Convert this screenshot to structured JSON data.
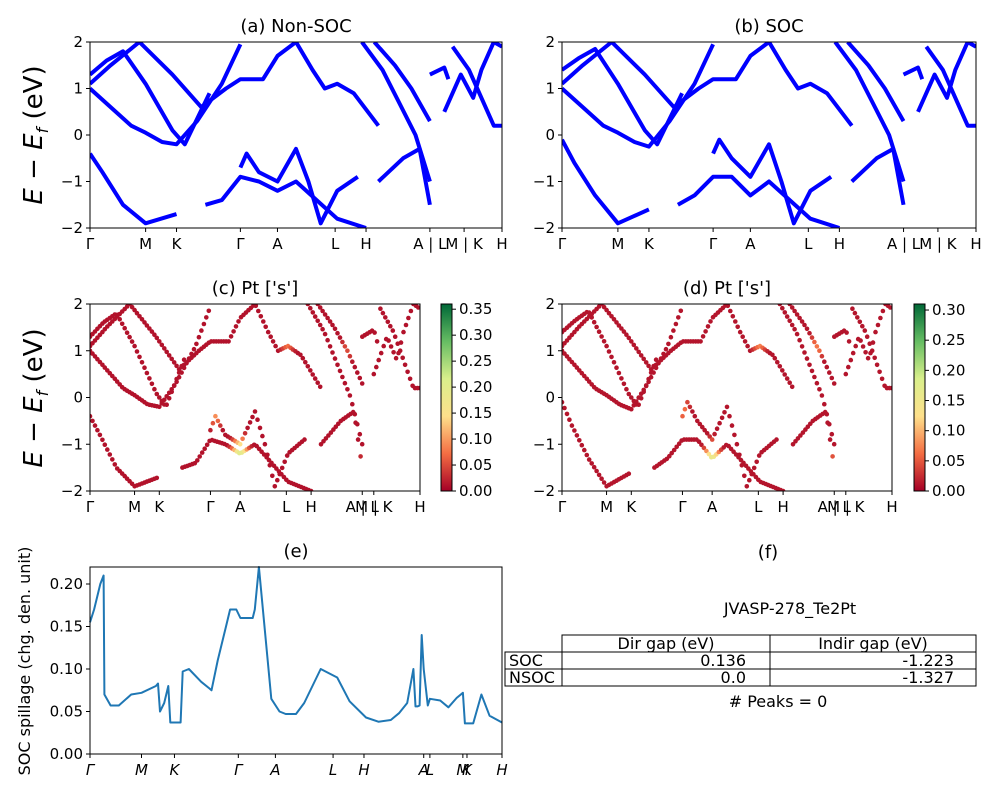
{
  "chart_data": [
    {
      "id": "a",
      "type": "line",
      "title": "(a) Non-SOC",
      "ylabel": "E − E_f (eV)",
      "ylim": [
        -2,
        2
      ],
      "yticks": [
        "2",
        "1",
        "0",
        "−1",
        "−2"
      ],
      "kpath_labels": [
        "Γ",
        "M",
        "K",
        "Γ",
        "A",
        "L",
        "H",
        "A | L",
        "M | K",
        "H"
      ],
      "kpath_positions": [
        0,
        0.135,
        0.21,
        0.365,
        0.455,
        0.595,
        0.67,
        0.825,
        0.908,
        1.0
      ],
      "line_color": "#0000ff",
      "bands": [
        {
          "x": [
            0,
            0.05,
            0.1,
            0.135,
            0.175,
            0.21,
            0.26,
            0.32,
            0.365
          ],
          "y": [
            1.0,
            0.6,
            0.2,
            0.05,
            -0.15,
            -0.2,
            0.3,
            1.1,
            1.95
          ]
        },
        {
          "x": [
            0,
            0.04,
            0.08,
            0.135,
            0.2,
            0.23,
            0.29
          ],
          "y": [
            1.3,
            1.6,
            1.8,
            1.1,
            0.1,
            -0.2,
            0.9
          ]
        },
        {
          "x": [
            0,
            0.03,
            0.08,
            0.135,
            0.21
          ],
          "y": [
            -0.4,
            -0.8,
            -1.5,
            -1.9,
            -1.7
          ]
        },
        {
          "x": [
            0,
            0.05,
            0.12,
            0.2,
            0.27,
            0.33,
            0.365,
            0.42,
            0.455,
            0.5,
            0.54,
            0.57,
            0.6,
            0.64,
            0.7
          ],
          "y": [
            1.1,
            1.5,
            2.0,
            1.3,
            0.6,
            1.0,
            1.2,
            1.2,
            1.7,
            2.0,
            1.4,
            1.0,
            1.1,
            0.9,
            0.2
          ]
        },
        {
          "x": [
            0.365,
            0.38,
            0.41,
            0.455,
            0.5,
            0.53,
            0.56,
            0.6,
            0.65
          ],
          "y": [
            -0.7,
            -0.4,
            -0.8,
            -1.0,
            -0.3,
            -1.0,
            -1.9,
            -1.2,
            -0.9
          ]
        },
        {
          "x": [
            0.28,
            0.32,
            0.365,
            0.41,
            0.455,
            0.5,
            0.55,
            0.6,
            0.67
          ],
          "y": [
            -1.5,
            -1.4,
            -0.9,
            -1.0,
            -1.2,
            -1.0,
            -1.4,
            -1.8,
            -2.0
          ]
        },
        {
          "x": [
            0.66,
            0.71,
            0.75,
            0.79,
            0.825
          ],
          "y": [
            2.0,
            1.4,
            0.7,
            0.0,
            -1.0
          ]
        },
        {
          "x": [
            0.69,
            0.74,
            0.78,
            0.825
          ],
          "y": [
            2.0,
            1.5,
            1.0,
            0.3
          ]
        },
        {
          "x": [
            0.7,
            0.76,
            0.8,
            0.825
          ],
          "y": [
            -1.0,
            -0.5,
            -0.3,
            -1.5
          ]
        },
        {
          "x": [
            0.825,
            0.86,
            0.87
          ],
          "y": [
            1.3,
            1.45,
            1.2
          ]
        },
        {
          "x": [
            0.86,
            0.9,
            0.93,
            0.95,
            0.98,
            1.0
          ],
          "y": [
            0.5,
            1.3,
            0.8,
            1.4,
            2.0,
            1.9
          ]
        },
        {
          "x": [
            0.88,
            0.92,
            0.95,
            0.98,
            1.0
          ],
          "y": [
            1.9,
            1.4,
            0.8,
            0.2,
            0.2
          ]
        }
      ]
    },
    {
      "id": "b",
      "type": "line",
      "title": "(b) SOC",
      "ylim": [
        -2,
        2
      ],
      "yticks": [
        "2",
        "1",
        "0",
        "−1",
        "−2"
      ],
      "kpath_labels": [
        "Γ",
        "M",
        "K",
        "Γ",
        "A",
        "L",
        "H",
        "A | L",
        "M | K",
        "H"
      ],
      "kpath_positions": [
        0,
        0.135,
        0.21,
        0.365,
        0.455,
        0.595,
        0.67,
        0.825,
        0.908,
        1.0
      ],
      "line_color": "#0000ff",
      "bands": [
        {
          "x": [
            0,
            0.05,
            0.1,
            0.135,
            0.175,
            0.21,
            0.26,
            0.32,
            0.365
          ],
          "y": [
            1.0,
            0.6,
            0.2,
            0.05,
            -0.15,
            -0.25,
            0.3,
            1.1,
            1.95
          ]
        },
        {
          "x": [
            0,
            0.04,
            0.08,
            0.135,
            0.2,
            0.23,
            0.29
          ],
          "y": [
            1.4,
            1.65,
            1.85,
            1.1,
            0.1,
            -0.2,
            0.9
          ]
        },
        {
          "x": [
            0,
            0.03,
            0.08,
            0.135,
            0.21
          ],
          "y": [
            -0.1,
            -0.6,
            -1.3,
            -1.9,
            -1.6
          ]
        },
        {
          "x": [
            0,
            0.05,
            0.12,
            0.2,
            0.27,
            0.33,
            0.365,
            0.42,
            0.455,
            0.5,
            0.54,
            0.57,
            0.6,
            0.64,
            0.7
          ],
          "y": [
            1.1,
            1.5,
            2.0,
            1.3,
            0.6,
            1.0,
            1.2,
            1.2,
            1.7,
            2.0,
            1.4,
            1.0,
            1.1,
            0.9,
            0.2
          ]
        },
        {
          "x": [
            0.365,
            0.38,
            0.41,
            0.455,
            0.5,
            0.53,
            0.56,
            0.6,
            0.65
          ],
          "y": [
            -0.4,
            -0.1,
            -0.5,
            -0.9,
            -0.2,
            -1.0,
            -1.9,
            -1.2,
            -0.9
          ]
        },
        {
          "x": [
            0.28,
            0.32,
            0.365,
            0.41,
            0.455,
            0.5,
            0.55,
            0.6,
            0.67
          ],
          "y": [
            -1.5,
            -1.3,
            -0.9,
            -0.9,
            -1.3,
            -1.0,
            -1.4,
            -1.8,
            -2.0
          ]
        },
        {
          "x": [
            0.66,
            0.71,
            0.75,
            0.79,
            0.825
          ],
          "y": [
            2.0,
            1.4,
            0.7,
            0.0,
            -1.0
          ]
        },
        {
          "x": [
            0.69,
            0.74,
            0.78,
            0.825
          ],
          "y": [
            2.0,
            1.5,
            1.0,
            0.3
          ]
        },
        {
          "x": [
            0.7,
            0.76,
            0.8,
            0.825
          ],
          "y": [
            -1.0,
            -0.5,
            -0.3,
            -1.5
          ]
        },
        {
          "x": [
            0.825,
            0.86,
            0.87
          ],
          "y": [
            1.3,
            1.45,
            1.2
          ]
        },
        {
          "x": [
            0.86,
            0.9,
            0.93,
            0.95,
            0.98,
            1.0
          ],
          "y": [
            0.5,
            1.3,
            0.8,
            1.4,
            2.0,
            1.9
          ]
        },
        {
          "x": [
            0.88,
            0.92,
            0.95,
            0.98,
            1.0
          ],
          "y": [
            1.9,
            1.4,
            0.8,
            0.2,
            0.2
          ]
        }
      ]
    },
    {
      "id": "c",
      "type": "scatter",
      "title": "(c)  Pt ['s']",
      "ylabel": "E − E_f (eV)",
      "ylim": [
        -2,
        2
      ],
      "yticks": [
        "2",
        "1",
        "0",
        "−1",
        "−2"
      ],
      "kpath_labels": [
        "Γ",
        "M",
        "K",
        "Γ",
        "A",
        "L",
        "H",
        "A | L",
        "M | K",
        "H"
      ],
      "kpath_positions": [
        0,
        0.135,
        0.21,
        0.365,
        0.455,
        0.595,
        0.67,
        0.825,
        0.86,
        1.0
      ],
      "colorbar": {
        "min": 0.0,
        "max": 0.36,
        "ticks": [
          "0.35",
          "0.30",
          "0.25",
          "0.20",
          "0.15",
          "0.10",
          "0.05",
          "0.00"
        ],
        "tick_values": [
          0.35,
          0.3,
          0.25,
          0.2,
          0.15,
          0.1,
          0.05,
          0.0
        ],
        "colormap": "RdYlGn",
        "colors": [
          "#a50026",
          "#f46d43",
          "#fee08b",
          "#d9ef8b",
          "#66bd63",
          "#006837"
        ]
      },
      "highlights": [
        {
          "x": 0.455,
          "y": -1.2,
          "w": 0.2
        },
        {
          "x": 0.44,
          "y": -1.55,
          "w": 0.14
        },
        {
          "x": 0.83,
          "y": -1.7,
          "w": 0.15
        },
        {
          "x": 0.6,
          "y": 1.3,
          "w": 0.1
        },
        {
          "x": 0.38,
          "y": -0.3,
          "w": 0.1
        },
        {
          "x": 0.79,
          "y": 1.2,
          "w": 0.08
        }
      ]
    },
    {
      "id": "d",
      "type": "scatter",
      "title": "(d) Pt ['s']",
      "ylim": [
        -2,
        2
      ],
      "yticks": [
        "2",
        "1",
        "0",
        "−1",
        "−2"
      ],
      "kpath_labels": [
        "Γ",
        "M",
        "K",
        "Γ",
        "A",
        "L",
        "H",
        "A | L",
        "M | K",
        "H"
      ],
      "kpath_positions": [
        0,
        0.135,
        0.21,
        0.365,
        0.455,
        0.595,
        0.67,
        0.825,
        0.86,
        1.0
      ],
      "colorbar": {
        "min": 0.0,
        "max": 0.31,
        "ticks": [
          "0.30",
          "0.25",
          "0.20",
          "0.15",
          "0.10",
          "0.05",
          "0.00"
        ],
        "tick_values": [
          0.3,
          0.25,
          0.2,
          0.15,
          0.1,
          0.05,
          0.0
        ],
        "colormap": "RdYlGn",
        "colors": [
          "#a50026",
          "#f46d43",
          "#fee08b",
          "#d9ef8b",
          "#66bd63",
          "#006837"
        ]
      },
      "highlights": [
        {
          "x": 0.455,
          "y": -1.3,
          "w": 0.16
        },
        {
          "x": 0.83,
          "y": -1.6,
          "w": 0.14
        },
        {
          "x": 0.6,
          "y": 1.3,
          "w": 0.1
        },
        {
          "x": 0.36,
          "y": -0.2,
          "w": 0.08
        },
        {
          "x": 0.78,
          "y": 1.2,
          "w": 0.08
        }
      ]
    },
    {
      "id": "e",
      "type": "line",
      "title": "(e)",
      "ylabel": "SOC spillage (chg. den. unit)",
      "ylim": [
        0,
        0.22
      ],
      "yticks": [
        "0.20",
        "0.15",
        "0.10",
        "0.05",
        "0.00"
      ],
      "ytick_values": [
        0.2,
        0.15,
        0.1,
        0.05,
        0.0
      ],
      "kpath_labels": [
        "Γ",
        "M",
        "K",
        "Γ",
        "A",
        "L",
        "H",
        "A",
        "L",
        "M",
        "K",
        "H"
      ],
      "kpath_positions": [
        0,
        0.125,
        0.205,
        0.36,
        0.45,
        0.59,
        0.665,
        0.81,
        0.825,
        0.905,
        0.915,
        1.0
      ],
      "line_color": "#1f77b4",
      "x": [
        0,
        0.01,
        0.025,
        0.033,
        0.035,
        0.05,
        0.07,
        0.1,
        0.125,
        0.16,
        0.165,
        0.17,
        0.18,
        0.19,
        0.195,
        0.2,
        0.22,
        0.225,
        0.24,
        0.27,
        0.29,
        0.295,
        0.31,
        0.33,
        0.34,
        0.355,
        0.365,
        0.395,
        0.4,
        0.41,
        0.44,
        0.46,
        0.475,
        0.5,
        0.52,
        0.56,
        0.6,
        0.63,
        0.67,
        0.7,
        0.73,
        0.75,
        0.77,
        0.785,
        0.79,
        0.795,
        0.8,
        0.805,
        0.81,
        0.82,
        0.825,
        0.85,
        0.87,
        0.89,
        0.905,
        0.91,
        0.915,
        0.93,
        0.95,
        0.97,
        1.0
      ],
      "y": [
        0.155,
        0.17,
        0.2,
        0.21,
        0.07,
        0.057,
        0.057,
        0.07,
        0.072,
        0.08,
        0.083,
        0.05,
        0.06,
        0.08,
        0.037,
        0.037,
        0.037,
        0.097,
        0.1,
        0.085,
        0.077,
        0.075,
        0.11,
        0.15,
        0.17,
        0.17,
        0.16,
        0.16,
        0.17,
        0.22,
        0.065,
        0.05,
        0.047,
        0.047,
        0.06,
        0.1,
        0.09,
        0.062,
        0.043,
        0.038,
        0.04,
        0.048,
        0.06,
        0.1,
        0.056,
        0.056,
        0.057,
        0.14,
        0.1,
        0.057,
        0.065,
        0.063,
        0.055,
        0.066,
        0.072,
        0.036,
        0.036,
        0.036,
        0.07,
        0.045,
        0.037
      ]
    }
  ],
  "panel_f": {
    "title": "(f)",
    "material": "JVASP-278_Te2Pt",
    "columns": [
      "Dir gap (eV)",
      "Indir gap (eV)"
    ],
    "rows": [
      {
        "label": "SOC",
        "dir_gap": "0.136",
        "indir_gap": "-1.223"
      },
      {
        "label": "NSOC",
        "dir_gap": "0.0",
        "indir_gap": "-1.327"
      }
    ],
    "peaks": "# Peaks = 0"
  }
}
